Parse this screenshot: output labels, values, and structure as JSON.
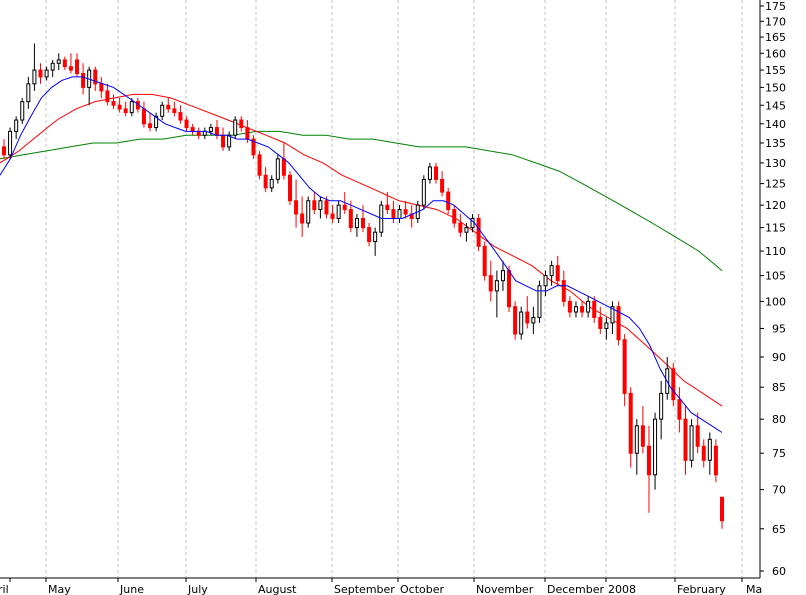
{
  "chart_data": {
    "type": "candlestick",
    "title": "",
    "xlabel": "",
    "ylabel": "",
    "ylim": [
      60,
      175
    ],
    "y_scale": "log",
    "y_ticks": [
      60,
      65,
      70,
      75,
      80,
      85,
      90,
      95,
      100,
      105,
      110,
      115,
      120,
      125,
      130,
      135,
      140,
      145,
      150,
      155,
      160,
      165,
      170,
      175
    ],
    "y_axis_side": "right",
    "grid": {
      "vertical": "dashed",
      "horizontal": "none"
    },
    "x_labels": [
      "ril",
      "May",
      "June",
      "July",
      "August",
      "September",
      "October",
      "November",
      "December",
      "2008",
      "February",
      "Ma"
    ],
    "colors": {
      "up_candle": "#000000",
      "down_candle": "#ff0000",
      "ma_fast": "#0000ff",
      "ma_medium": "#ff0000",
      "ma_slow": "#008000",
      "grid": "#c0c0c0"
    },
    "candles": [
      {
        "o": 134,
        "h": 136,
        "l": 131,
        "c": 132
      },
      {
        "o": 132,
        "h": 139,
        "l": 131,
        "c": 138
      },
      {
        "o": 138,
        "h": 142,
        "l": 136,
        "c": 141
      },
      {
        "o": 141,
        "h": 147,
        "l": 140,
        "c": 146
      },
      {
        "o": 146,
        "h": 153,
        "l": 144,
        "c": 151
      },
      {
        "o": 151,
        "h": 163,
        "l": 149,
        "c": 155
      },
      {
        "o": 155,
        "h": 157,
        "l": 151,
        "c": 153
      },
      {
        "o": 153,
        "h": 156,
        "l": 152,
        "c": 155
      },
      {
        "o": 155,
        "h": 158,
        "l": 153,
        "c": 157
      },
      {
        "o": 157,
        "h": 160,
        "l": 155,
        "c": 158
      },
      {
        "o": 158,
        "h": 159,
        "l": 155,
        "c": 156
      },
      {
        "o": 156,
        "h": 160,
        "l": 154,
        "c": 155
      },
      {
        "o": 158,
        "h": 160,
        "l": 153,
        "c": 154
      },
      {
        "o": 154,
        "h": 157,
        "l": 148,
        "c": 150
      },
      {
        "o": 150,
        "h": 156,
        "l": 145,
        "c": 155
      },
      {
        "o": 155,
        "h": 156,
        "l": 149,
        "c": 151
      },
      {
        "o": 151,
        "h": 153,
        "l": 147,
        "c": 149
      },
      {
        "o": 149,
        "h": 151,
        "l": 145,
        "c": 146
      },
      {
        "o": 146,
        "h": 148,
        "l": 144,
        "c": 145
      },
      {
        "o": 145,
        "h": 147,
        "l": 143,
        "c": 144
      },
      {
        "o": 144,
        "h": 146,
        "l": 142,
        "c": 143
      },
      {
        "o": 143,
        "h": 147,
        "l": 142,
        "c": 146
      },
      {
        "o": 146,
        "h": 147,
        "l": 143,
        "c": 144
      },
      {
        "o": 144,
        "h": 146,
        "l": 139,
        "c": 140
      },
      {
        "o": 140,
        "h": 143,
        "l": 138,
        "c": 139
      },
      {
        "o": 139,
        "h": 143,
        "l": 138,
        "c": 142
      },
      {
        "o": 142,
        "h": 146,
        "l": 141,
        "c": 145
      },
      {
        "o": 145,
        "h": 147,
        "l": 143,
        "c": 144
      },
      {
        "o": 144,
        "h": 146,
        "l": 142,
        "c": 143
      },
      {
        "o": 143,
        "h": 145,
        "l": 140,
        "c": 141
      },
      {
        "o": 141,
        "h": 142,
        "l": 138,
        "c": 139
      },
      {
        "o": 139,
        "h": 140,
        "l": 137,
        "c": 138
      },
      {
        "o": 138,
        "h": 139,
        "l": 136,
        "c": 137
      },
      {
        "o": 137,
        "h": 139,
        "l": 136,
        "c": 138
      },
      {
        "o": 138,
        "h": 140,
        "l": 137,
        "c": 139
      },
      {
        "o": 139,
        "h": 141,
        "l": 136,
        "c": 137
      },
      {
        "o": 137,
        "h": 139,
        "l": 133,
        "c": 134
      },
      {
        "o": 134,
        "h": 138,
        "l": 133,
        "c": 137
      },
      {
        "o": 137,
        "h": 142,
        "l": 136,
        "c": 141
      },
      {
        "o": 141,
        "h": 142,
        "l": 138,
        "c": 139
      },
      {
        "o": 139,
        "h": 141,
        "l": 135,
        "c": 136
      },
      {
        "o": 136,
        "h": 137,
        "l": 131,
        "c": 132
      },
      {
        "o": 132,
        "h": 133,
        "l": 126,
        "c": 127
      },
      {
        "o": 127,
        "h": 129,
        "l": 123,
        "c": 124
      },
      {
        "o": 124,
        "h": 127,
        "l": 123,
        "c": 126
      },
      {
        "o": 126,
        "h": 132,
        "l": 125,
        "c": 131
      },
      {
        "o": 131,
        "h": 135,
        "l": 126,
        "c": 127
      },
      {
        "o": 127,
        "h": 128,
        "l": 120,
        "c": 121
      },
      {
        "o": 121,
        "h": 126,
        "l": 115,
        "c": 118
      },
      {
        "o": 118,
        "h": 122,
        "l": 113,
        "c": 116
      },
      {
        "o": 116,
        "h": 122,
        "l": 115,
        "c": 121
      },
      {
        "o": 121,
        "h": 123,
        "l": 118,
        "c": 119
      },
      {
        "o": 119,
        "h": 122,
        "l": 117,
        "c": 121
      },
      {
        "o": 121,
        "h": 122,
        "l": 117,
        "c": 118
      },
      {
        "o": 118,
        "h": 120,
        "l": 116,
        "c": 117
      },
      {
        "o": 117,
        "h": 121,
        "l": 116,
        "c": 120
      },
      {
        "o": 120,
        "h": 123,
        "l": 118,
        "c": 119
      },
      {
        "o": 119,
        "h": 121,
        "l": 114,
        "c": 115
      },
      {
        "o": 115,
        "h": 118,
        "l": 113,
        "c": 117
      },
      {
        "o": 117,
        "h": 120,
        "l": 114,
        "c": 115
      },
      {
        "o": 115,
        "h": 116,
        "l": 111,
        "c": 112
      },
      {
        "o": 112,
        "h": 115,
        "l": 109,
        "c": 114
      },
      {
        "o": 114,
        "h": 121,
        "l": 113,
        "c": 120
      },
      {
        "o": 120,
        "h": 123,
        "l": 118,
        "c": 119
      },
      {
        "o": 119,
        "h": 121,
        "l": 116,
        "c": 117
      },
      {
        "o": 117,
        "h": 120,
        "l": 116,
        "c": 119
      },
      {
        "o": 119,
        "h": 121,
        "l": 117,
        "c": 118
      },
      {
        "o": 118,
        "h": 120,
        "l": 115,
        "c": 117
      },
      {
        "o": 117,
        "h": 121,
        "l": 116,
        "c": 120
      },
      {
        "o": 120,
        "h": 127,
        "l": 119,
        "c": 126
      },
      {
        "o": 126,
        "h": 130,
        "l": 125,
        "c": 129
      },
      {
        "o": 129,
        "h": 130,
        "l": 125,
        "c": 126
      },
      {
        "o": 126,
        "h": 128,
        "l": 122,
        "c": 123
      },
      {
        "o": 123,
        "h": 124,
        "l": 118,
        "c": 119
      },
      {
        "o": 119,
        "h": 120,
        "l": 115,
        "c": 116
      },
      {
        "o": 116,
        "h": 118,
        "l": 113,
        "c": 114
      },
      {
        "o": 114,
        "h": 116,
        "l": 112,
        "c": 115
      },
      {
        "o": 115,
        "h": 118,
        "l": 114,
        "c": 117
      },
      {
        "o": 117,
        "h": 118,
        "l": 110,
        "c": 111
      },
      {
        "o": 111,
        "h": 112,
        "l": 104,
        "c": 105
      },
      {
        "o": 105,
        "h": 108,
        "l": 100,
        "c": 102
      },
      {
        "o": 102,
        "h": 106,
        "l": 97,
        "c": 104
      },
      {
        "o": 104,
        "h": 108,
        "l": 102,
        "c": 106
      },
      {
        "o": 106,
        "h": 107,
        "l": 98,
        "c": 99
      },
      {
        "o": 99,
        "h": 100,
        "l": 93,
        "c": 94
      },
      {
        "o": 94,
        "h": 99,
        "l": 93,
        "c": 98
      },
      {
        "o": 98,
        "h": 101,
        "l": 95,
        "c": 96
      },
      {
        "o": 96,
        "h": 99,
        "l": 94,
        "c": 97
      },
      {
        "o": 97,
        "h": 104,
        "l": 96,
        "c": 103
      },
      {
        "o": 103,
        "h": 106,
        "l": 101,
        "c": 105
      },
      {
        "o": 105,
        "h": 108,
        "l": 103,
        "c": 107
      },
      {
        "o": 107,
        "h": 109,
        "l": 103,
        "c": 104
      },
      {
        "o": 104,
        "h": 106,
        "l": 99,
        "c": 100
      },
      {
        "o": 100,
        "h": 101,
        "l": 97,
        "c": 98
      },
      {
        "o": 98,
        "h": 100,
        "l": 97,
        "c": 99
      },
      {
        "o": 99,
        "h": 100,
        "l": 97,
        "c": 98
      },
      {
        "o": 98,
        "h": 101,
        "l": 97,
        "c": 100
      },
      {
        "o": 100,
        "h": 101,
        "l": 96,
        "c": 97
      },
      {
        "o": 97,
        "h": 99,
        "l": 94,
        "c": 95
      },
      {
        "o": 95,
        "h": 97,
        "l": 93,
        "c": 96
      },
      {
        "o": 96,
        "h": 100,
        "l": 94,
        "c": 99
      },
      {
        "o": 99,
        "h": 100,
        "l": 92,
        "c": 93
      },
      {
        "o": 93,
        "h": 94,
        "l": 82,
        "c": 84
      },
      {
        "o": 84,
        "h": 85,
        "l": 73,
        "c": 75
      },
      {
        "o": 75,
        "h": 80,
        "l": 72,
        "c": 79
      },
      {
        "o": 79,
        "h": 82,
        "l": 75,
        "c": 76
      },
      {
        "o": 76,
        "h": 79,
        "l": 67,
        "c": 72
      },
      {
        "o": 72,
        "h": 81,
        "l": 70,
        "c": 80
      },
      {
        "o": 80,
        "h": 86,
        "l": 77,
        "c": 84
      },
      {
        "o": 84,
        "h": 90,
        "l": 83,
        "c": 88
      },
      {
        "o": 88,
        "h": 89,
        "l": 82,
        "c": 83
      },
      {
        "o": 83,
        "h": 85,
        "l": 78,
        "c": 80
      },
      {
        "o": 80,
        "h": 82,
        "l": 72,
        "c": 74
      },
      {
        "o": 74,
        "h": 80,
        "l": 73,
        "c": 79
      },
      {
        "o": 79,
        "h": 81,
        "l": 75,
        "c": 76
      },
      {
        "o": 76,
        "h": 77,
        "l": 73,
        "c": 74
      },
      {
        "o": 74,
        "h": 78,
        "l": 72,
        "c": 77
      },
      {
        "o": 76,
        "h": 77,
        "l": 71,
        "c": 72
      },
      {
        "o": 69,
        "h": 69,
        "l": 65,
        "c": 66
      }
    ],
    "ma_fast": [
      127,
      131,
      137,
      142,
      147,
      150,
      152,
      153,
      153,
      152,
      151,
      150,
      148,
      146,
      144,
      142,
      140,
      139,
      138,
      138,
      138,
      137,
      137,
      136,
      136,
      135,
      134,
      132,
      130,
      127,
      124,
      122,
      121,
      121,
      120,
      119,
      118,
      117,
      117,
      117,
      118,
      119,
      121,
      121,
      120,
      118,
      116,
      113,
      110,
      107,
      104,
      103,
      102,
      102,
      103,
      103,
      102,
      101,
      100,
      99,
      98,
      97,
      95,
      92,
      88,
      85,
      83,
      81,
      80,
      79,
      78
    ],
    "ma_medium": [
      130,
      133,
      137,
      141,
      144,
      146,
      147,
      148,
      148,
      147,
      145,
      143,
      141,
      139,
      137,
      135,
      132,
      130,
      127,
      125,
      123,
      121,
      120,
      119,
      117,
      114,
      111,
      109,
      107,
      104,
      102,
      99,
      97,
      95,
      92,
      89,
      86,
      84,
      82
    ],
    "ma_slow": [
      131,
      132,
      133,
      134,
      135,
      135,
      136,
      136,
      137,
      137,
      137,
      138,
      138,
      137,
      137,
      136,
      136,
      135,
      134,
      134,
      134,
      133,
      132,
      130,
      128,
      125,
      122,
      119,
      116,
      113,
      110,
      106
    ]
  }
}
